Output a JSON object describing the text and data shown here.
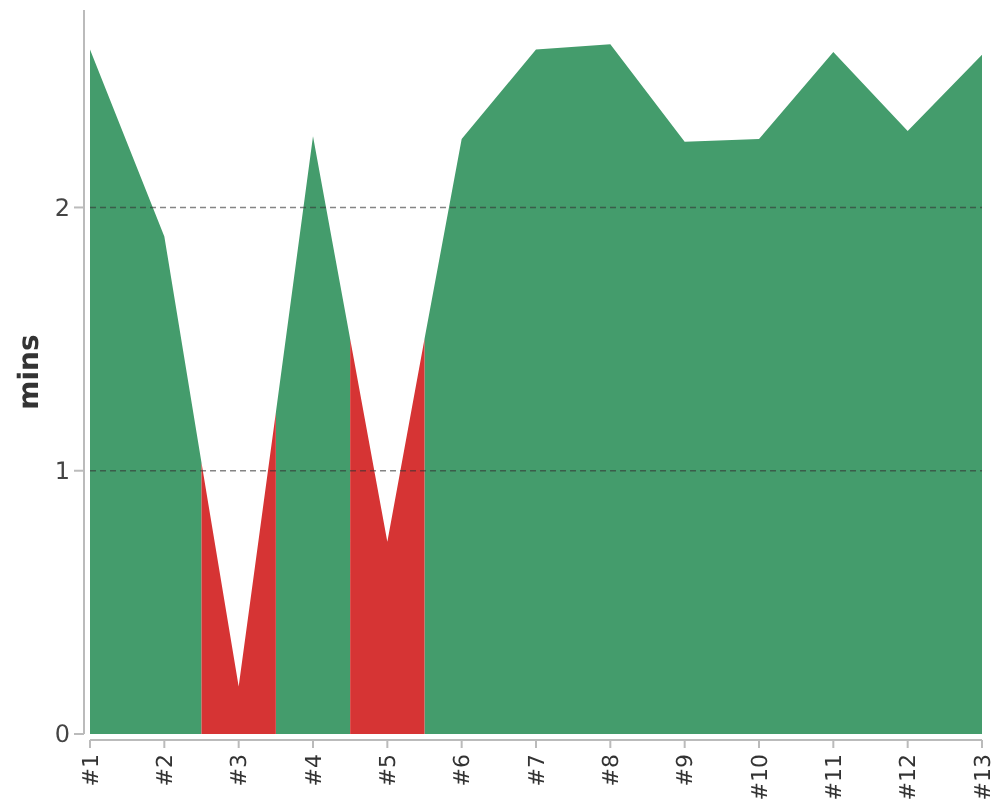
{
  "chart_data": {
    "type": "area",
    "ylabel": "mins",
    "xlim": [
      1,
      13
    ],
    "xticks": [
      {
        "value": 1,
        "label": "#1"
      },
      {
        "value": 2,
        "label": "#2"
      },
      {
        "value": 3,
        "label": "#3"
      },
      {
        "value": 4,
        "label": "#4"
      },
      {
        "value": 5,
        "label": "#5"
      },
      {
        "value": 6,
        "label": "#6"
      },
      {
        "value": 7,
        "label": "#7"
      },
      {
        "value": 8,
        "label": "#8"
      },
      {
        "value": 9,
        "label": "#9"
      },
      {
        "value": 10,
        "label": "#10"
      },
      {
        "value": 11,
        "label": "#11"
      },
      {
        "value": 12,
        "label": "#12"
      },
      {
        "value": 13,
        "label": "#13"
      }
    ],
    "series": [
      {
        "color": "#449c6c",
        "x": [
          1,
          2,
          2.5,
          3,
          3.5,
          4,
          4.5,
          5,
          5.5,
          6,
          7,
          8,
          9,
          10,
          11,
          12,
          13
        ],
        "values": [
          2.6,
          1.89,
          1.03,
          null,
          1.22,
          2.27,
          1.5,
          null,
          1.5,
          2.26,
          2.6,
          2.62,
          2.25,
          2.26,
          2.59,
          2.29,
          2.58
        ]
      },
      {
        "color": "#d63434",
        "x": [
          2.5,
          3,
          3.5,
          4,
          4.5,
          5,
          5.5
        ],
        "values": [
          1.03,
          0.18,
          1.22,
          null,
          1.5,
          0.73,
          1.5
        ]
      }
    ],
    "ylim": [
      0,
      2.75
    ],
    "yticks": [
      0,
      1,
      2
    ],
    "grid": "y"
  }
}
